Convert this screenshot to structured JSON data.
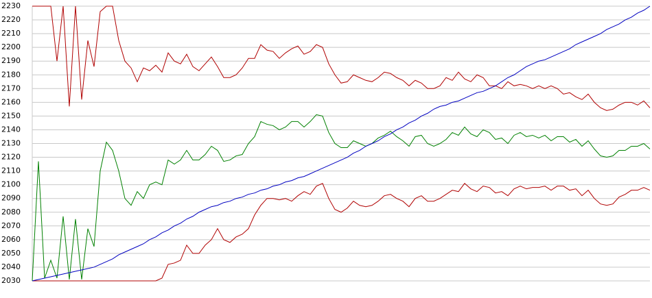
{
  "chart_data": {
    "type": "line",
    "ylim": [
      2030,
      2230
    ],
    "yticks": [
      2030,
      2040,
      2050,
      2060,
      2070,
      2080,
      2090,
      2100,
      2110,
      2120,
      2130,
      2140,
      2150,
      2160,
      2170,
      2180,
      2190,
      2200,
      2210,
      2220,
      2230
    ],
    "grid": true,
    "series": [
      {
        "color": "#008000",
        "values": [
          2030,
          2117,
          2032,
          2045,
          2032,
          2077,
          2031,
          2075,
          2031,
          2068,
          2055,
          2110,
          2131,
          2125,
          2110,
          2090,
          2085,
          2095,
          2090,
          2100,
          2102,
          2100,
          2118,
          2115,
          2118,
          2125,
          2118,
          2118,
          2122,
          2128,
          2125,
          2117,
          2118,
          2121,
          2122,
          2130,
          2135,
          2146,
          2144,
          2143,
          2140,
          2142,
          2146,
          2146,
          2142,
          2146,
          2151,
          2150,
          2138,
          2130,
          2127,
          2127,
          2132,
          2130,
          2128,
          2130,
          2134,
          2136,
          2139,
          2135,
          2132,
          2128,
          2135,
          2136,
          2130,
          2128,
          2130,
          2133,
          2138,
          2136,
          2142,
          2137,
          2135,
          2140,
          2138,
          2133,
          2134,
          2130,
          2136,
          2138,
          2135,
          2136,
          2134,
          2136,
          2132,
          2135,
          2135,
          2131,
          2133,
          2128,
          2132,
          2126,
          2121,
          2120,
          2121,
          2125,
          2125,
          2128,
          2128,
          2130,
          2126
        ]
      },
      {
        "color": "#b00000",
        "values": [
          2030,
          2030,
          2030,
          2030,
          2030,
          2030,
          2030,
          2030,
          2030,
          2030,
          2030,
          2030,
          2030,
          2030,
          2030,
          2030,
          2030,
          2030,
          2030,
          2030,
          2030,
          2032,
          2042,
          2043,
          2045,
          2056,
          2050,
          2050,
          2056,
          2060,
          2068,
          2060,
          2058,
          2062,
          2064,
          2068,
          2078,
          2085,
          2090,
          2090,
          2089,
          2090,
          2088,
          2092,
          2095,
          2093,
          2099,
          2101,
          2090,
          2082,
          2080,
          2083,
          2088,
          2085,
          2084,
          2085,
          2088,
          2092,
          2093,
          2090,
          2088,
          2084,
          2090,
          2092,
          2088,
          2088,
          2090,
          2093,
          2096,
          2095,
          2101,
          2097,
          2095,
          2099,
          2098,
          2094,
          2095,
          2092,
          2097,
          2099,
          2097,
          2098,
          2098,
          2099,
          2096,
          2099,
          2099,
          2096,
          2097,
          2092,
          2096,
          2090,
          2086,
          2085,
          2086,
          2091,
          2093,
          2096,
          2096,
          2098,
          2096
        ]
      },
      {
        "color": "#b00000",
        "values": [
          2230,
          2230,
          2230,
          2230,
          2190,
          2230,
          2157,
          2230,
          2162,
          2205,
          2186,
          2226,
          2230,
          2230,
          2205,
          2190,
          2185,
          2175,
          2185,
          2183,
          2187,
          2182,
          2196,
          2190,
          2188,
          2195,
          2186,
          2183,
          2188,
          2193,
          2186,
          2178,
          2178,
          2180,
          2185,
          2192,
          2192,
          2202,
          2198,
          2197,
          2192,
          2196,
          2199,
          2201,
          2195,
          2197,
          2202,
          2200,
          2188,
          2180,
          2174,
          2175,
          2180,
          2178,
          2176,
          2175,
          2178,
          2182,
          2181,
          2178,
          2176,
          2172,
          2176,
          2174,
          2170,
          2170,
          2172,
          2178,
          2176,
          2182,
          2177,
          2175,
          2180,
          2178,
          2172,
          2172,
          2170,
          2175,
          2172,
          2173,
          2172,
          2170,
          2172,
          2170,
          2172,
          2170,
          2166,
          2167,
          2164,
          2162,
          2166,
          2160,
          2156,
          2154,
          2155,
          2158,
          2160,
          2160,
          2158,
          2161,
          2156
        ]
      },
      {
        "color": "#0000c0",
        "values": [
          2030,
          2031,
          2032,
          2033,
          2034,
          2035,
          2036,
          2037,
          2038,
          2039,
          2040,
          2042,
          2044,
          2046,
          2049,
          2051,
          2053,
          2055,
          2057,
          2060,
          2062,
          2065,
          2067,
          2070,
          2072,
          2075,
          2077,
          2080,
          2082,
          2084,
          2085,
          2087,
          2088,
          2090,
          2091,
          2093,
          2094,
          2096,
          2097,
          2099,
          2100,
          2102,
          2103,
          2105,
          2106,
          2108,
          2110,
          2112,
          2114,
          2116,
          2118,
          2120,
          2123,
          2125,
          2128,
          2130,
          2132,
          2135,
          2137,
          2140,
          2142,
          2145,
          2147,
          2150,
          2152,
          2155,
          2157,
          2158,
          2160,
          2161,
          2163,
          2165,
          2167,
          2168,
          2170,
          2172,
          2175,
          2178,
          2180,
          2183,
          2186,
          2188,
          2190,
          2191,
          2193,
          2195,
          2197,
          2199,
          2202,
          2204,
          2206,
          2208,
          2210,
          2213,
          2215,
          2217,
          2220,
          2222,
          2225,
          2227,
          2230
        ]
      }
    ]
  }
}
